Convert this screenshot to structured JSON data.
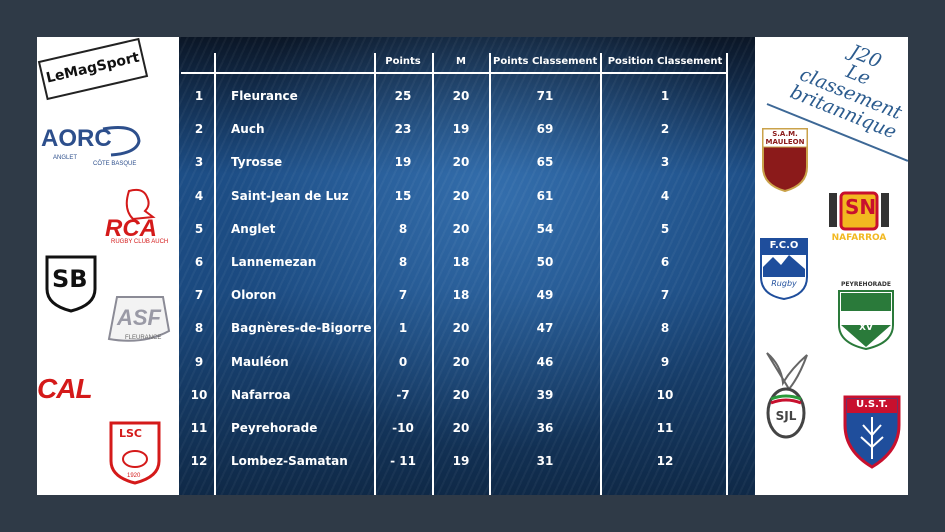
{
  "title": {
    "line1": "J20",
    "line2": "Le classement",
    "line3": "britannique"
  },
  "table": {
    "headers": {
      "points": "Points",
      "m": "M",
      "points_classement": "Points Classement",
      "position_classement": "Position Classement"
    },
    "rows": [
      {
        "rank": "1",
        "team": "Fleurance",
        "points": "25",
        "m": "20",
        "points_classement": "71",
        "position": "1"
      },
      {
        "rank": "2",
        "team": "Auch",
        "points": "23",
        "m": "19",
        "points_classement": "69",
        "position": "2"
      },
      {
        "rank": "3",
        "team": "Tyrosse",
        "points": "19",
        "m": "20",
        "points_classement": "65",
        "position": "3"
      },
      {
        "rank": "4",
        "team": "Saint-Jean de Luz",
        "points": "15",
        "m": "20",
        "points_classement": "61",
        "position": "4"
      },
      {
        "rank": "5",
        "team": "Anglet",
        "points": "8",
        "m": "20",
        "points_classement": "54",
        "position": "5"
      },
      {
        "rank": "6",
        "team": "Lannemezan",
        "points": "8",
        "m": "18",
        "points_classement": "50",
        "position": "6"
      },
      {
        "rank": "7",
        "team": "Oloron",
        "points": "7",
        "m": "18",
        "points_classement": "49",
        "position": "7"
      },
      {
        "rank": "8",
        "team": "Bagnères-de-Bigorre",
        "points": "1",
        "m": "20",
        "points_classement": "47",
        "position": "8"
      },
      {
        "rank": "9",
        "team": "Mauléon",
        "points": "0",
        "m": "20",
        "points_classement": "46",
        "position": "9"
      },
      {
        "rank": "10",
        "team": "Nafarroa",
        "points": "-7",
        "m": "20",
        "points_classement": "39",
        "position": "10"
      },
      {
        "rank": "11",
        "team": "Peyrehorade",
        "points": "-10",
        "m": "20",
        "points_classement": "36",
        "position": "11"
      },
      {
        "rank": "12",
        "team": "Lombez-Samatan",
        "points": "- 11",
        "m": "19",
        "points_classement": "31",
        "position": "12"
      }
    ]
  },
  "logos": {
    "lemagsport": "LeMagSport",
    "aorc": {
      "name": "AORC",
      "sub1": "ANGLET",
      "sub2": "CÔTE BASQUE",
      "color": "#2d4f8c"
    },
    "rca": {
      "name": "RCA",
      "sub": "RUGBY CLUB AUCH",
      "color": "#d41a1a"
    },
    "sb": {
      "name": "SB"
    },
    "asf": {
      "name": "ASF",
      "sub": "FLEURANCE"
    },
    "cal": {
      "name": "CAL",
      "color": "#d41a1a"
    },
    "lsc": {
      "name": "LSC",
      "year": "1920"
    },
    "sam": {
      "line1": "S.A.M.",
      "line2": "MAULEON"
    },
    "nafarroa": {
      "name": "NAFARROA",
      "initials": "SN"
    },
    "fco": {
      "name": "F.C.O",
      "sub": "Rugby"
    },
    "peyrehorade": {
      "name": "PEYREHORADE",
      "sub": "XV"
    },
    "sjl": {
      "name": "SJL"
    },
    "ust": {
      "name": "U.S.T."
    }
  }
}
